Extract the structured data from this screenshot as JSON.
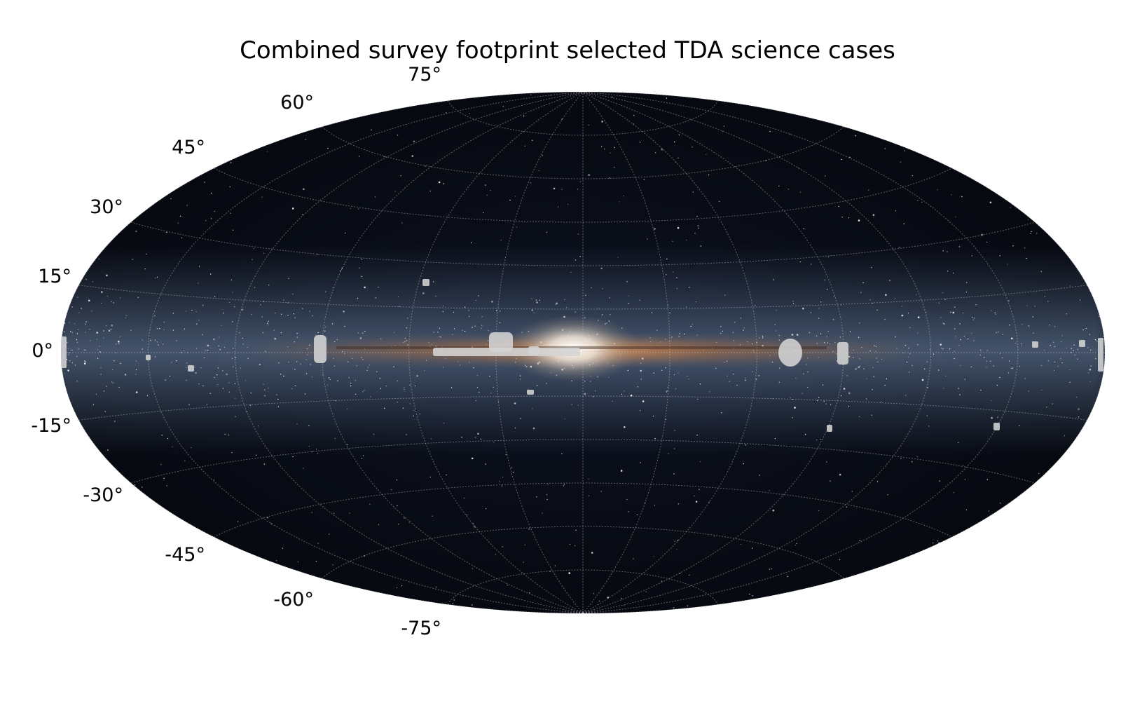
{
  "title": "Combined survey footprint selected TDA science cases",
  "latitude_labels": [
    "75°",
    "60°",
    "45°",
    "30°",
    "15°",
    "0°",
    "-15°",
    "-30°",
    "-45°",
    "-60°",
    "-75°"
  ],
  "map": {
    "projection": "aitoff",
    "coordinate_frame": "galactic",
    "background": "milky-way-all-sky-image",
    "sky_color": "#05070d",
    "galactic_plane_color": "#e08a4f",
    "footprint_color": "#d4d4d4",
    "grid": true,
    "latitude_grid_deg": [
      -75,
      -60,
      -45,
      -30,
      -15,
      0,
      15,
      30,
      45,
      60,
      75
    ],
    "longitude_grid_deg": [
      -180,
      -150,
      -120,
      -90,
      -60,
      -30,
      0,
      30,
      60,
      90,
      120,
      150,
      180
    ]
  }
}
